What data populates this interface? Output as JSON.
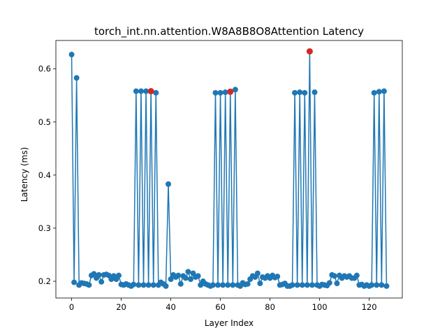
{
  "chart_data": {
    "type": "line",
    "title": "torch_int.nn.attention.W8A8B8O8Attention Latency",
    "xlabel": "Layer Index",
    "ylabel": "Latency (ms)",
    "xlim": [
      -6.35,
      133.35
    ],
    "ylim": [
      0.1685,
      0.6535
    ],
    "xticks": [
      0,
      20,
      40,
      60,
      80,
      100,
      120
    ],
    "yticks": [
      0.2,
      0.3,
      0.4,
      0.5,
      0.6
    ],
    "grid": false,
    "series_color": "#1f77b4",
    "highlight_color": "#d62728",
    "x": [
      0,
      1,
      2,
      3,
      4,
      5,
      6,
      7,
      8,
      9,
      10,
      11,
      12,
      13,
      14,
      15,
      16,
      17,
      18,
      19,
      20,
      21,
      22,
      23,
      24,
      25,
      26,
      27,
      28,
      29,
      30,
      31,
      32,
      33,
      34,
      35,
      36,
      37,
      38,
      39,
      40,
      41,
      42,
      43,
      44,
      45,
      46,
      47,
      48,
      49,
      50,
      51,
      52,
      53,
      54,
      55,
      56,
      57,
      58,
      59,
      60,
      61,
      62,
      63,
      64,
      65,
      66,
      67,
      68,
      69,
      70,
      71,
      72,
      73,
      74,
      75,
      76,
      77,
      78,
      79,
      80,
      81,
      82,
      83,
      84,
      85,
      86,
      87,
      88,
      89,
      90,
      91,
      92,
      93,
      94,
      95,
      96,
      97,
      98,
      99,
      100,
      101,
      102,
      103,
      104,
      105,
      106,
      107,
      108,
      109,
      110,
      111,
      112,
      113,
      114,
      115,
      116,
      117,
      118,
      119,
      120,
      121,
      122,
      123,
      124,
      125,
      126,
      127
    ],
    "y": [
      0.627,
      0.198,
      0.583,
      0.193,
      0.197,
      0.196,
      0.195,
      0.193,
      0.211,
      0.214,
      0.206,
      0.212,
      0.199,
      0.212,
      0.213,
      0.211,
      0.204,
      0.21,
      0.204,
      0.211,
      0.194,
      0.193,
      0.195,
      0.193,
      0.191,
      0.194,
      0.558,
      0.193,
      0.558,
      0.193,
      0.558,
      0.193,
      0.558,
      0.193,
      0.555,
      0.193,
      0.198,
      0.195,
      0.191,
      0.383,
      0.204,
      0.212,
      0.208,
      0.211,
      0.195,
      0.21,
      0.206,
      0.218,
      0.204,
      0.215,
      0.208,
      0.21,
      0.193,
      0.2,
      0.195,
      0.193,
      0.191,
      0.193,
      0.555,
      0.193,
      0.555,
      0.193,
      0.556,
      0.193,
      0.557,
      0.193,
      0.561,
      0.193,
      0.191,
      0.197,
      0.194,
      0.195,
      0.204,
      0.21,
      0.208,
      0.215,
      0.196,
      0.208,
      0.206,
      0.21,
      0.206,
      0.211,
      0.207,
      0.209,
      0.193,
      0.194,
      0.196,
      0.191,
      0.191,
      0.193,
      0.555,
      0.193,
      0.556,
      0.193,
      0.555,
      0.193,
      0.633,
      0.193,
      0.556,
      0.193,
      0.191,
      0.194,
      0.193,
      0.192,
      0.197,
      0.212,
      0.21,
      0.196,
      0.211,
      0.206,
      0.21,
      0.208,
      0.21,
      0.206,
      0.206,
      0.211,
      0.193,
      0.194,
      0.191,
      0.193,
      0.191,
      0.193,
      0.555,
      0.193,
      0.557,
      0.193,
      0.558,
      0.191
    ],
    "highlight_points": [
      {
        "x": 32,
        "y": 0.558
      },
      {
        "x": 64,
        "y": 0.557
      },
      {
        "x": 96,
        "y": 0.633
      }
    ]
  }
}
